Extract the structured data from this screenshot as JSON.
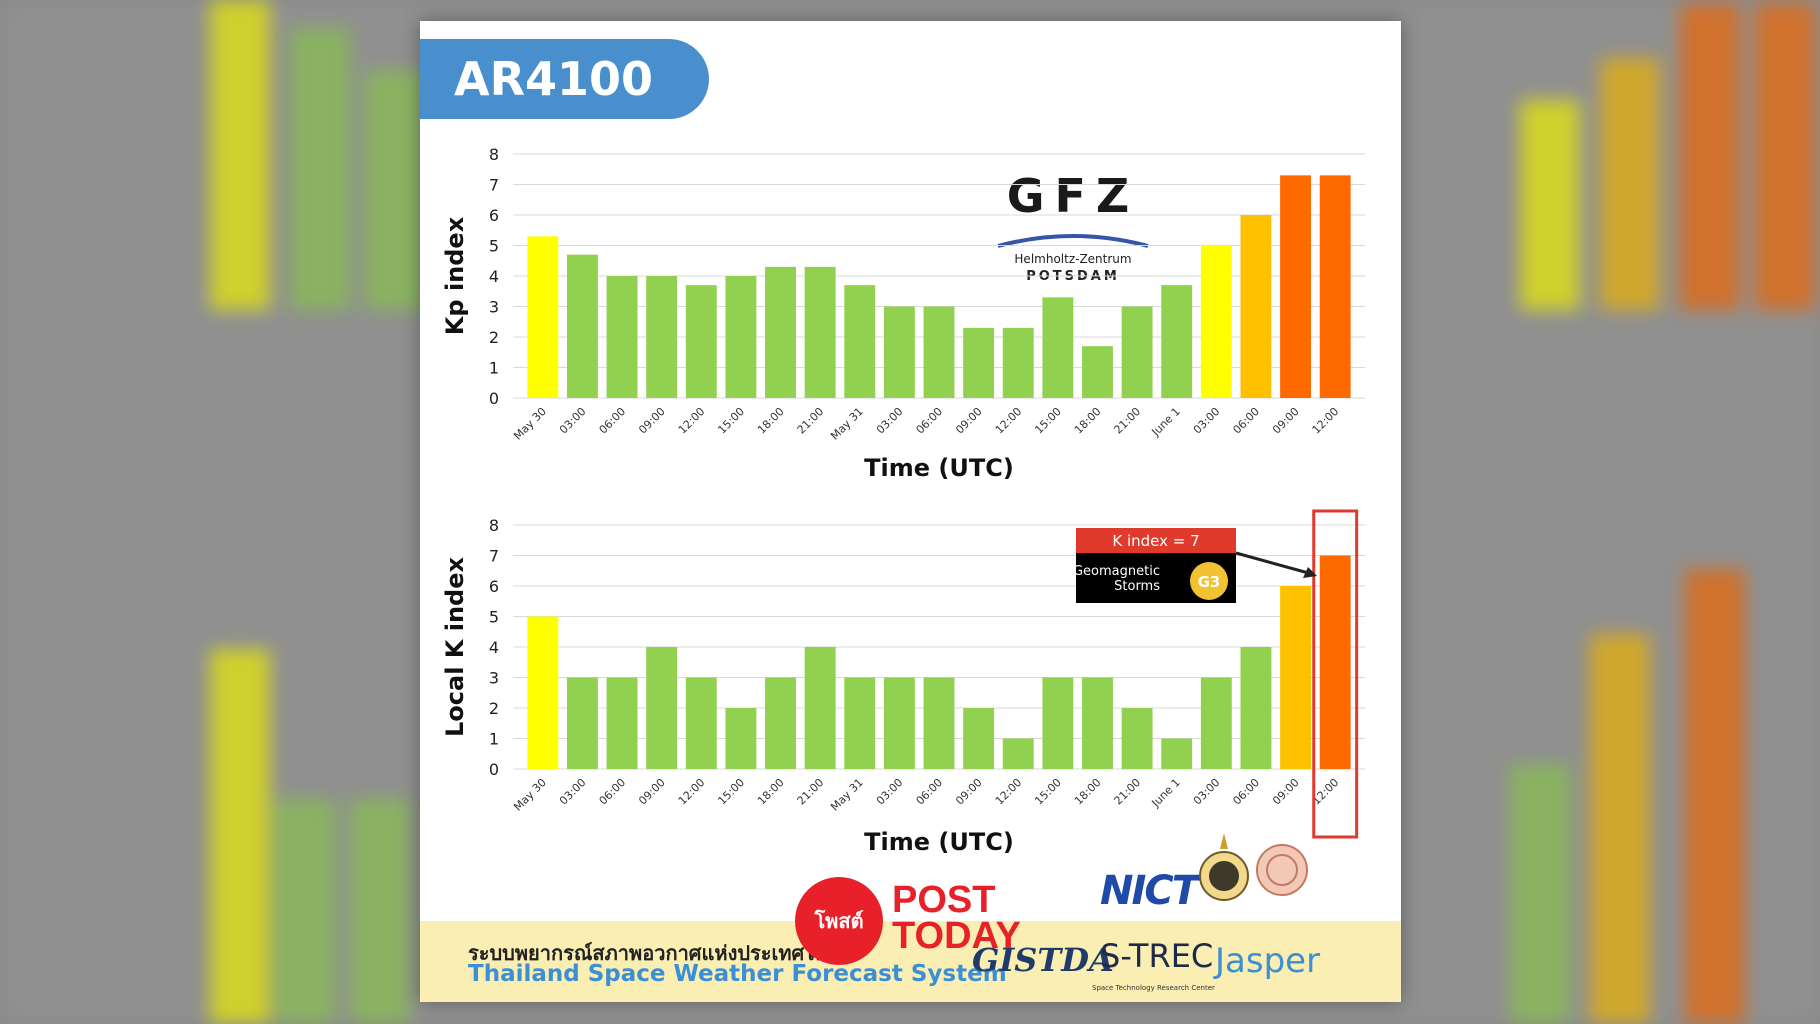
{
  "title": "AR4100",
  "chart_data": [
    {
      "type": "bar",
      "ylabel": "Kp index",
      "xlabel": "Time (UTC)",
      "ylim": [
        0,
        8
      ],
      "yticks": [
        0,
        1,
        2,
        3,
        4,
        5,
        6,
        7,
        8
      ],
      "grid": true,
      "categories": [
        "May 30",
        "03:00",
        "06:00",
        "09:00",
        "12:00",
        "15:00",
        "18:00",
        "21:00",
        "May 31",
        "03:00",
        "06:00",
        "09:00",
        "12:00",
        "15:00",
        "18:00",
        "21:00",
        "June 1",
        "03:00",
        "06:00",
        "09:00",
        "12:00"
      ],
      "values": [
        5.3,
        4.7,
        4.0,
        4.0,
        3.7,
        4.0,
        4.3,
        4.3,
        3.7,
        3.0,
        3.0,
        2.3,
        2.3,
        3.3,
        1.7,
        3.0,
        3.7,
        5.0,
        6.0,
        7.3,
        7.3
      ],
      "colors": [
        "#ffff00",
        "#92d050",
        "#92d050",
        "#92d050",
        "#92d050",
        "#92d050",
        "#92d050",
        "#92d050",
        "#92d050",
        "#92d050",
        "#92d050",
        "#92d050",
        "#92d050",
        "#92d050",
        "#92d050",
        "#92d050",
        "#92d050",
        "#ffff00",
        "#ffc000",
        "#ff6a00",
        "#ff6a00"
      ]
    },
    {
      "type": "bar",
      "ylabel": "Local K index",
      "xlabel": "Time (UTC)",
      "ylim": [
        0,
        8
      ],
      "yticks": [
        0,
        1,
        2,
        3,
        4,
        5,
        6,
        7,
        8
      ],
      "grid": true,
      "categories": [
        "May 30",
        "03:00",
        "06:00",
        "09:00",
        "12:00",
        "15:00",
        "18:00",
        "21:00",
        "May 31",
        "03:00",
        "06:00",
        "09:00",
        "12:00",
        "15:00",
        "18:00",
        "21:00",
        "June 1",
        "03:00",
        "06:00",
        "09:00",
        "12:00"
      ],
      "values": [
        5,
        3,
        3,
        4,
        3,
        2,
        3,
        4,
        3,
        3,
        3,
        2,
        1,
        3,
        3,
        2,
        1,
        3,
        4,
        6,
        7
      ],
      "colors": [
        "#ffff00",
        "#92d050",
        "#92d050",
        "#92d050",
        "#92d050",
        "#92d050",
        "#92d050",
        "#92d050",
        "#92d050",
        "#92d050",
        "#92d050",
        "#92d050",
        "#92d050",
        "#92d050",
        "#92d050",
        "#92d050",
        "#92d050",
        "#92d050",
        "#92d050",
        "#ffc000",
        "#ff6a00"
      ],
      "highlight_index": 20,
      "annotation": {
        "header": "K index = 7",
        "body_line1": "Geomagnetic",
        "body_line2": "Storms",
        "badge": "G3"
      }
    }
  ],
  "logos": {
    "gfz": "GFZ",
    "gfz_sub1": "Helmholtz-Zentrum",
    "gfz_sub2": "POTSDAM",
    "nict": "NICT",
    "post": "POST",
    "today": "TODAY",
    "post_thai": "โพสต์",
    "gistda": "GISTDA",
    "strec": "S-TREC",
    "strec_sub": "Space Technology Research Center",
    "jasper": "Jasper"
  },
  "footer": {
    "thai": "ระบบพยากรณ์สภาพอวกาศแห่งประเทศไทย",
    "english": "Thailand Space Weather Forecast System"
  }
}
